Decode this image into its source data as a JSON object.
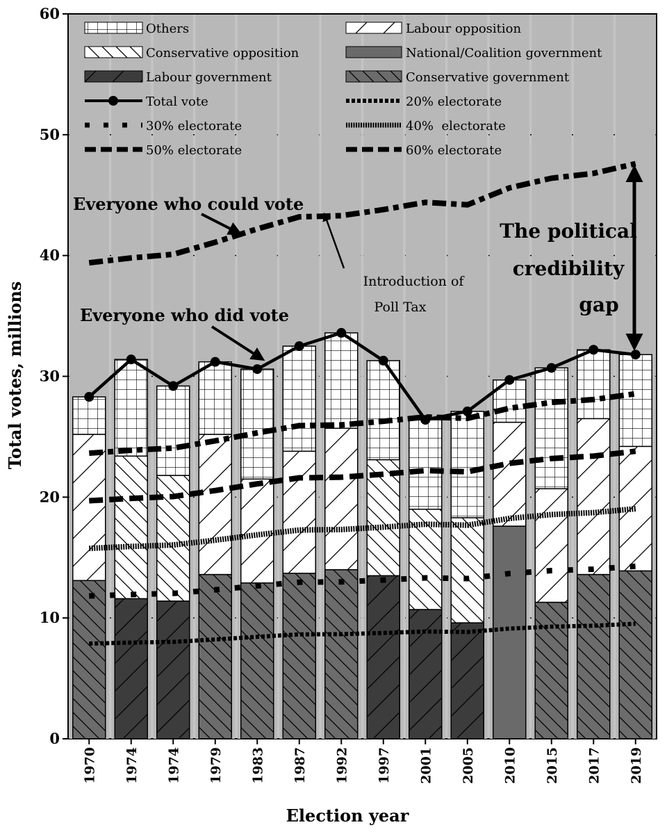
{
  "chart_data": {
    "type": "bar",
    "stacked": true,
    "xlabel": "Election year",
    "ylabel": "Total votes, millions",
    "ylim": [
      0,
      60
    ],
    "yticks": [
      "0",
      "10",
      "20",
      "30",
      "40",
      "50",
      "60"
    ],
    "grid": "horizontal dotted",
    "legend_placement": "top",
    "categories": [
      "1970",
      "1974",
      "1974",
      "1979",
      "1983",
      "1987",
      "1992",
      "1997",
      "2001",
      "2005",
      "2010",
      "2015",
      "2017",
      "2019"
    ],
    "bars": [
      {
        "government": "Conservative",
        "opposition": "Labour",
        "gov": 13.1,
        "opp": 12.1,
        "others": 3.1
      },
      {
        "government": "Labour",
        "opposition": "Conservative",
        "gov": 11.6,
        "opp": 11.8,
        "others": 8.0
      },
      {
        "government": "Labour",
        "opposition": "Conservative",
        "gov": 11.4,
        "opp": 10.4,
        "others": 7.4
      },
      {
        "government": "Conservative",
        "opposition": "Labour",
        "gov": 13.6,
        "opp": 11.6,
        "others": 6.0
      },
      {
        "government": "Conservative",
        "opposition": "Labour",
        "gov": 12.9,
        "opp": 8.6,
        "others": 9.1
      },
      {
        "government": "Conservative",
        "opposition": "Labour",
        "gov": 13.7,
        "opp": 10.1,
        "others": 8.7
      },
      {
        "government": "Conservative",
        "opposition": "Labour",
        "gov": 14.0,
        "opp": 11.7,
        "others": 7.9
      },
      {
        "government": "Labour",
        "opposition": "Conservative",
        "gov": 13.5,
        "opp": 9.6,
        "others": 8.2
      },
      {
        "government": "Labour",
        "opposition": "Conservative",
        "gov": 10.7,
        "opp": 8.3,
        "others": 7.4
      },
      {
        "government": "Labour",
        "opposition": "Conservative",
        "gov": 9.6,
        "opp": 8.7,
        "others": 8.8
      },
      {
        "government": "National/Coalition",
        "opposition": "Labour",
        "gov": 17.6,
        "opp": 8.6,
        "others": 3.5
      },
      {
        "government": "Conservative",
        "opposition": "Labour",
        "gov": 11.3,
        "opp": 9.4,
        "others": 10.0
      },
      {
        "government": "Conservative",
        "opposition": "Labour",
        "gov": 13.6,
        "opp": 12.9,
        "others": 5.7
      },
      {
        "government": "Conservative",
        "opposition": "Labour",
        "gov": 13.9,
        "opp": 10.3,
        "others": 7.6
      }
    ],
    "total_vote": [
      28.3,
      31.4,
      29.2,
      31.2,
      30.6,
      32.5,
      33.6,
      31.3,
      26.4,
      27.1,
      29.7,
      30.7,
      32.2,
      31.8
    ],
    "electorate": [
      39.4,
      39.8,
      40.1,
      41.1,
      42.2,
      43.2,
      43.3,
      43.8,
      44.4,
      44.2,
      45.6,
      46.4,
      46.8,
      47.6
    ],
    "electorate_fractions": [
      {
        "label": "20% electorate",
        "fraction": 0.2
      },
      {
        "label": "30% electorate",
        "fraction": 0.3
      },
      {
        "label": "40%  electorate",
        "fraction": 0.4
      },
      {
        "label": "50% electorate",
        "fraction": 0.5
      },
      {
        "label": "60% electorate",
        "fraction": 0.6
      }
    ],
    "legend": {
      "others": "Others",
      "labour_opposition": "Labour opposition",
      "conservative_opposition": "Conservative opposition",
      "national_government": "National/Coalition government",
      "labour_government": "Labour government",
      "conservative_government": "Conservative government",
      "total_vote": "Total vote"
    },
    "annotations": {
      "could_vote": "Everyone who could vote",
      "did_vote": "Everyone who did vote",
      "poll_tax_1": "Introduction of",
      "poll_tax_2": "Poll Tax",
      "gap_1": "The political",
      "gap_2": "credibility",
      "gap_3": "gap"
    },
    "colors": {
      "plot_bg": "#c4c4c4",
      "band": "#b8b8b8",
      "labour_gov": "#3c3c3c",
      "con_gov": "#6c6c6c",
      "national": "#6a6a6a"
    }
  }
}
